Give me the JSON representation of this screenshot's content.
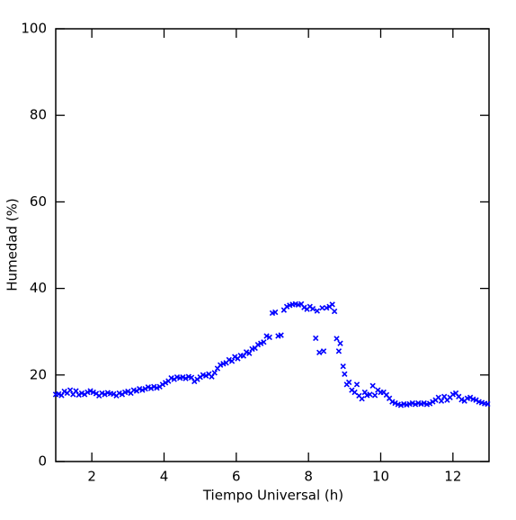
{
  "chart_data": {
    "type": "scatter",
    "xlabel": "Tiempo Universal (h)",
    "ylabel": "Humedad (%)",
    "color": "#0000ff",
    "xlim": [
      1,
      13
    ],
    "ylim": [
      0,
      100
    ],
    "xticks": [
      2,
      4,
      6,
      8,
      10,
      12
    ],
    "yticks": [
      0,
      20,
      40,
      60,
      80,
      100
    ],
    "x": [
      1.0,
      1.08,
      1.16,
      1.24,
      1.32,
      1.4,
      1.48,
      1.56,
      1.64,
      1.72,
      1.8,
      1.88,
      1.96,
      2.04,
      2.12,
      2.2,
      2.28,
      2.36,
      2.44,
      2.52,
      2.6,
      2.68,
      2.76,
      2.84,
      2.92,
      3.0,
      3.08,
      3.16,
      3.24,
      3.32,
      3.4,
      3.48,
      3.56,
      3.64,
      3.72,
      3.8,
      3.88,
      3.96,
      4.04,
      4.12,
      4.2,
      4.28,
      4.36,
      4.44,
      4.52,
      4.6,
      4.68,
      4.76,
      4.84,
      4.92,
      5.0,
      5.08,
      5.16,
      5.24,
      5.32,
      5.4,
      5.48,
      5.56,
      5.64,
      5.72,
      5.8,
      5.88,
      5.96,
      6.04,
      6.12,
      6.2,
      6.28,
      6.36,
      6.44,
      6.52,
      6.6,
      6.68,
      6.76,
      6.84,
      6.92,
      7.0,
      7.08,
      7.16,
      7.24,
      7.32,
      7.4,
      7.48,
      7.56,
      7.64,
      7.72,
      7.8,
      7.88,
      7.96,
      8.04,
      8.12,
      8.2,
      8.24,
      8.3,
      8.38,
      8.42,
      8.5,
      8.58,
      8.66,
      8.72,
      8.78,
      8.84,
      8.88,
      8.96,
      9.0,
      9.06,
      9.12,
      9.2,
      9.28,
      9.34,
      9.4,
      9.48,
      9.56,
      9.62,
      9.7,
      9.78,
      9.84,
      9.92,
      10.0,
      10.08,
      10.16,
      10.24,
      10.32,
      10.4,
      10.48,
      10.56,
      10.64,
      10.72,
      10.8,
      10.88,
      10.96,
      11.04,
      11.12,
      11.2,
      11.28,
      11.36,
      11.44,
      11.52,
      11.6,
      11.68,
      11.76,
      11.84,
      11.92,
      12.0,
      12.08,
      12.16,
      12.24,
      12.32,
      12.4,
      12.48,
      12.56,
      12.64,
      12.72,
      12.8,
      12.88,
      12.96
    ],
    "values": [
      15.5,
      15.6,
      15.3,
      16.2,
      15.8,
      16.5,
      15.5,
      16.3,
      15.4,
      15.8,
      15.5,
      16.0,
      16.3,
      16.0,
      15.7,
      15.2,
      15.8,
      15.5,
      15.9,
      15.7,
      15.6,
      15.2,
      15.8,
      15.5,
      16.0,
      16.2,
      15.8,
      16.5,
      16.3,
      16.8,
      16.5,
      16.8,
      17.2,
      16.9,
      17.3,
      17.0,
      17.3,
      17.8,
      18.2,
      18.6,
      19.3,
      19.0,
      19.5,
      19.3,
      19.5,
      19.2,
      19.6,
      19.4,
      18.5,
      19.0,
      19.5,
      20.0,
      19.8,
      20.2,
      19.6,
      20.5,
      21.5,
      22.3,
      22.6,
      22.8,
      23.5,
      23.2,
      24.2,
      23.8,
      24.5,
      24.4,
      25.3,
      25.0,
      26.0,
      26.2,
      27.0,
      27.3,
      27.6,
      29.0,
      28.7,
      34.3,
      34.5,
      29.0,
      29.2,
      35.0,
      35.8,
      36.1,
      36.3,
      36.4,
      36.2,
      36.4,
      35.6,
      35.2,
      35.8,
      35.3,
      28.5,
      34.8,
      25.2,
      35.5,
      25.5,
      35.5,
      35.8,
      36.3,
      34.7,
      28.4,
      25.5,
      27.3,
      22.0,
      20.2,
      17.8,
      18.3,
      16.5,
      16.0,
      17.8,
      15.2,
      14.5,
      16.0,
      15.3,
      15.5,
      17.5,
      15.3,
      16.5,
      16.0,
      16.0,
      15.4,
      14.6,
      13.8,
      13.5,
      13.2,
      13.0,
      13.3,
      13.1,
      13.3,
      13.5,
      13.2,
      13.5,
      13.3,
      13.5,
      13.2,
      13.4,
      13.8,
      14.2,
      14.8,
      14.0,
      15.0,
      14.2,
      14.8,
      15.5,
      15.8,
      15.0,
      14.3,
      14.0,
      14.6,
      14.8,
      14.4,
      14.2,
      13.8,
      13.6,
      13.4,
      13.3
    ]
  }
}
